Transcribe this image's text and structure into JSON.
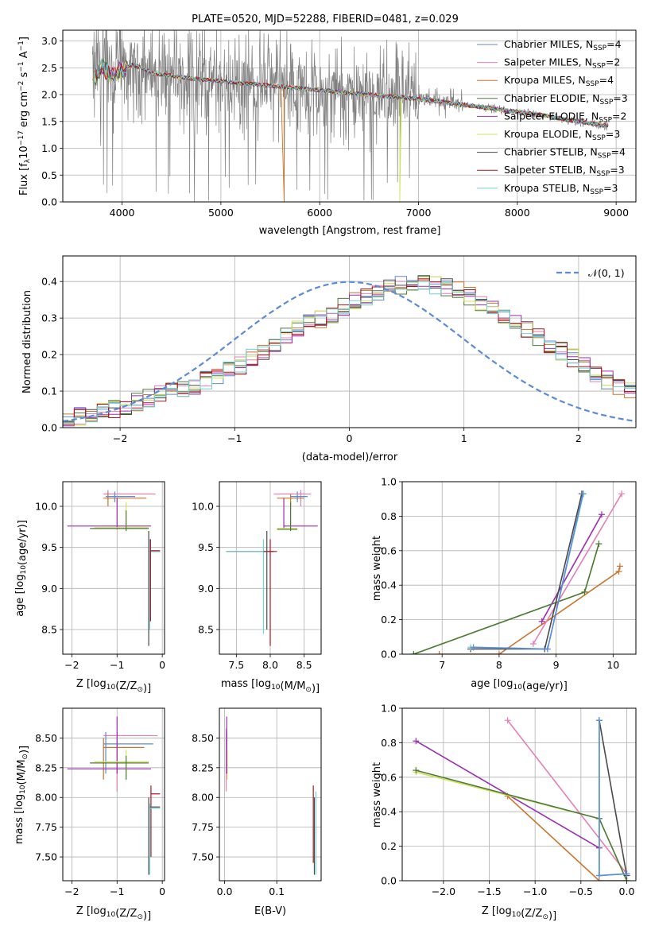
{
  "colors": {
    "Chabrier MILES": "#5b8bd6",
    "Salpeter MILES": "#e57fb8",
    "Kroupa MILES": "#c8762d",
    "Chabrier ELODIE": "#4d7a3b",
    "Salpeter ELODIE": "#9b2fb2",
    "Kroupa ELODIE": "#cfe25a",
    "Chabrier STELIB": "#4a4a4a",
    "Salpeter STELIB": "#b3111f",
    "Kroupa STELIB": "#6fd1d6",
    "data": "#808080",
    "gaussian": "#5b8bd6"
  },
  "chart_data": [
    {
      "id": "spectrum",
      "type": "line",
      "title": "PLATE=0520, MJD=52288, FIBERID=0481, z=0.029",
      "xlabel": "wavelength [Angstrom, rest frame]",
      "ylabel_main": "Flux [f",
      "ylabel_sub": "λ",
      "ylabel_rest": "10",
      "ylabel_exp1": "−17",
      "ylabel_mid": " erg cm",
      "ylabel_exp2": "−2",
      "ylabel_mid2": " s",
      "ylabel_exp3": "−1",
      "ylabel_end": " A",
      "ylabel_exp4": "−1",
      "ylabel_close": "]",
      "xlim": [
        3400,
        9200
      ],
      "ylim": [
        0,
        3.2
      ],
      "xticks": [
        4000,
        5000,
        6000,
        7000,
        8000,
        9000
      ],
      "yticks": [
        0.0,
        0.5,
        1.0,
        1.5,
        2.0,
        2.5,
        3.0
      ],
      "ytick_labels": [
        "0.0",
        "0.5",
        "1.0",
        "1.5",
        "2.0",
        "2.5",
        "3.0"
      ],
      "legend_position": "top-right",
      "legend": [
        {
          "name": "Chabrier MILES",
          "suffix": "=4"
        },
        {
          "name": "Salpeter MILES",
          "suffix": "=2"
        },
        {
          "name": "Kroupa MILES",
          "suffix": "=4"
        },
        {
          "name": "Chabrier ELODIE",
          "suffix": "=3"
        },
        {
          "name": "Salpeter ELODIE",
          "suffix": "=2"
        },
        {
          "name": "Kroupa ELODIE",
          "suffix": "=3"
        },
        {
          "name": "Chabrier STELIB",
          "suffix": "=4"
        },
        {
          "name": "Salpeter STELIB",
          "suffix": "=3"
        },
        {
          "name": "Kroupa STELIB",
          "suffix": "=3"
        }
      ],
      "legend_nssp": "N",
      "legend_nssp_sub": "SSP",
      "continuum": {
        "x": [
          3700,
          3800,
          3900,
          4000,
          4100,
          4200,
          4300,
          4500,
          4700,
          5000,
          5300,
          5600,
          5900,
          6200,
          6500,
          6800,
          7100,
          7400,
          7700,
          8000,
          8300,
          8600,
          8900
        ],
        "y": [
          2.3,
          2.5,
          2.35,
          2.45,
          2.55,
          2.5,
          2.4,
          2.35,
          2.3,
          2.25,
          2.2,
          2.15,
          2.1,
          2.05,
          2.0,
          1.95,
          1.9,
          1.82,
          1.75,
          1.68,
          1.6,
          1.5,
          1.42
        ]
      }
    },
    {
      "id": "residuals",
      "type": "bar",
      "xlabel": "(data-model)/error",
      "ylabel": "Normed distribution",
      "xlim": [
        -2.5,
        2.5
      ],
      "ylim": [
        0,
        0.47
      ],
      "xticks": [
        -2,
        -1,
        0,
        1,
        2
      ],
      "xtick_labels": [
        "−2",
        "−1",
        "0",
        "1",
        "2"
      ],
      "yticks": [
        0.0,
        0.1,
        0.2,
        0.3,
        0.4
      ],
      "ytick_labels": [
        "0.0",
        "0.1",
        "0.2",
        "0.3",
        "0.4"
      ],
      "bin_width": 0.1,
      "bins_start": -2.5,
      "base_hist": [
        0.025,
        0.03,
        0.04,
        0.045,
        0.05,
        0.06,
        0.07,
        0.08,
        0.09,
        0.1,
        0.105,
        0.115,
        0.13,
        0.14,
        0.155,
        0.17,
        0.19,
        0.21,
        0.23,
        0.25,
        0.27,
        0.285,
        0.295,
        0.31,
        0.33,
        0.345,
        0.36,
        0.37,
        0.38,
        0.39,
        0.395,
        0.395,
        0.39,
        0.385,
        0.375,
        0.36,
        0.345,
        0.33,
        0.31,
        0.29,
        0.27,
        0.25,
        0.23,
        0.21,
        0.19,
        0.17,
        0.15,
        0.13,
        0.115,
        0.1
      ],
      "gaussian_label": "𝒩(0, 1)",
      "legend_position": "top-right"
    },
    {
      "id": "age_vs_Z",
      "type": "scatter",
      "xlabel": "Z [log",
      "xlabel_sub": "10",
      "xlabel_rest": "(Z/Z",
      "xlabel_sun": "⊙",
      "xlabel_close": ")]",
      "ylabel": "age  [log",
      "ylabel_sub": "10",
      "ylabel_rest": "(age/yr)]",
      "xlim": [
        -2.2,
        0.05
      ],
      "ylim": [
        8.2,
        10.3
      ],
      "xticks": [
        -2,
        -1,
        0
      ],
      "xtick_labels": [
        "−2",
        "−1",
        "0"
      ],
      "yticks": [
        8.5,
        9.0,
        9.5,
        10.0
      ],
      "ytick_labels": [
        "8.5",
        "9.0",
        "9.5",
        "10.0"
      ]
    },
    {
      "id": "age_vs_mass",
      "type": "scatter",
      "xlabel": "mass [log",
      "xlabel_sub": "10",
      "xlabel_rest": "(M/M",
      "xlabel_sun": "⊙",
      "xlabel_close": ")]",
      "xlim": [
        7.25,
        8.75
      ],
      "ylim": [
        8.2,
        10.3
      ],
      "xticks": [
        7.5,
        8.0,
        8.5
      ],
      "xtick_labels": [
        "7.5",
        "8.0",
        "8.5"
      ],
      "yticks": [
        8.5,
        9.0,
        9.5,
        10.0
      ],
      "ytick_labels": [
        "8.5",
        "9.0",
        "9.5",
        "10.0"
      ]
    },
    {
      "id": "weight_vs_age",
      "type": "line",
      "xlabel": "age  [log",
      "xlabel_sub": "10",
      "xlabel_rest": "(age/yr)]",
      "ylabel": "mass weight",
      "xlim": [
        6.3,
        10.4
      ],
      "ylim": [
        0,
        1.0
      ],
      "xticks": [
        7,
        8,
        9,
        10
      ],
      "xtick_labels": [
        "7",
        "8",
        "9",
        "10"
      ],
      "yticks": [
        0.0,
        0.2,
        0.4,
        0.6,
        0.8,
        1.0
      ],
      "ytick_labels": [
        "0.0",
        "0.2",
        "0.4",
        "0.6",
        "0.8",
        "1.0"
      ],
      "series": [
        {
          "model": "Kroupa MILES",
          "x": [
            6.95,
            8.0,
            10.1,
            10.12
          ],
          "y": [
            0.0,
            0.0,
            0.48,
            0.51
          ]
        },
        {
          "model": "Salpeter MILES",
          "x": [
            8.6,
            10.15
          ],
          "y": [
            0.06,
            0.93
          ]
        },
        {
          "model": "Salpeter ELODIE",
          "x": [
            8.75,
            9.8
          ],
          "y": [
            0.19,
            0.81
          ]
        },
        {
          "model": "Kroupa ELODIE",
          "x": [
            6.5,
            9.5,
            9.75
          ],
          "y": [
            0.0,
            0.36,
            0.64
          ]
        },
        {
          "model": "Chabrier ELODIE",
          "x": [
            6.5,
            9.5,
            9.75
          ],
          "y": [
            0.0,
            0.36,
            0.64
          ]
        },
        {
          "model": "Chabrier STELIB",
          "x": [
            7.5,
            8.8,
            9.45
          ],
          "y": [
            0.03,
            0.03,
            0.93
          ]
        },
        {
          "model": "Kroupa STELIB",
          "x": [
            7.5,
            8.85,
            9.48
          ],
          "y": [
            0.04,
            0.03,
            0.93
          ]
        },
        {
          "model": "Chabrier MILES",
          "x": [
            7.55,
            8.85,
            9.47
          ],
          "y": [
            0.04,
            0.03,
            0.93
          ]
        }
      ]
    },
    {
      "id": "mass_vs_Z",
      "type": "scatter",
      "xlabel": "Z [log",
      "xlabel_sub": "10",
      "xlabel_rest": "(Z/Z",
      "xlabel_sun": "⊙",
      "xlabel_close": ")]",
      "ylabel": "mass [log",
      "ylabel_sub": "10",
      "ylabel_rest": "(M/M",
      "ylabel_sun": "⊙",
      "ylabel_close": ")]",
      "xlim": [
        -2.2,
        0.05
      ],
      "ylim": [
        7.3,
        8.75
      ],
      "xticks": [
        -2,
        -1,
        0
      ],
      "xtick_labels": [
        "−2",
        "−1",
        "0"
      ],
      "yticks": [
        7.5,
        7.75,
        8.0,
        8.25,
        8.5
      ],
      "ytick_labels": [
        "7.50",
        "7.75",
        "8.00",
        "8.25",
        "8.50"
      ]
    },
    {
      "id": "mass_vs_ebv",
      "type": "scatter",
      "xlabel": "E(B-V)",
      "xlim": [
        -0.01,
        0.185
      ],
      "ylim": [
        7.3,
        8.75
      ],
      "xticks": [
        0.0,
        0.1
      ],
      "xtick_labels": [
        "0.0",
        "0.1"
      ],
      "yticks": [
        7.5,
        7.75,
        8.0,
        8.25,
        8.5
      ],
      "ytick_labels": [
        "7.50",
        "7.75",
        "8.00",
        "8.25",
        "8.50"
      ]
    },
    {
      "id": "weight_vs_Z",
      "type": "line",
      "xlabel": "Z [log",
      "xlabel_sub": "10",
      "xlabel_rest": "(Z/Z",
      "xlabel_sun": "⊙",
      "xlabel_close": ")]",
      "ylabel": "mass weight",
      "xlim": [
        -2.45,
        0.1
      ],
      "ylim": [
        0,
        1.0
      ],
      "xticks": [
        -2.0,
        -1.5,
        -1.0,
        -0.5,
        0.0
      ],
      "xtick_labels": [
        "−2.0",
        "−1.5",
        "−1.0",
        "−0.5",
        "0.0"
      ],
      "yticks": [
        0.0,
        0.2,
        0.4,
        0.6,
        0.8,
        1.0
      ],
      "ytick_labels": [
        "0.0",
        "0.2",
        "0.4",
        "0.6",
        "0.8",
        "1.0"
      ],
      "series": [
        {
          "model": "Kroupa MILES",
          "x": [
            -1.3,
            -0.3,
            0.0
          ],
          "y": [
            0.49,
            0.0,
            0.0
          ]
        },
        {
          "model": "Salpeter MILES",
          "x": [
            -1.3,
            0.0
          ],
          "y": [
            0.93,
            0.04
          ]
        },
        {
          "model": "Salpeter ELODIE",
          "x": [
            -2.3,
            -0.3
          ],
          "y": [
            0.81,
            0.19
          ]
        },
        {
          "model": "Kroupa ELODIE",
          "x": [
            -2.3,
            -0.3,
            0.0
          ],
          "y": [
            0.63,
            0.36,
            0.0
          ]
        },
        {
          "model": "Chabrier ELODIE",
          "x": [
            -2.3,
            -0.3,
            0.0
          ],
          "y": [
            0.64,
            0.36,
            0.0
          ]
        },
        {
          "model": "Chabrier STELIB",
          "x": [
            -0.3,
            0.0
          ],
          "y": [
            0.93,
            0.03
          ]
        },
        {
          "model": "Kroupa STELIB",
          "x": [
            -0.3,
            -0.3,
            0.0
          ],
          "y": [
            0.93,
            0.03,
            0.04
          ]
        },
        {
          "model": "Chabrier MILES",
          "x": [
            -0.3,
            -0.3,
            0.0
          ],
          "y": [
            0.93,
            0.03,
            0.04
          ]
        }
      ]
    }
  ]
}
